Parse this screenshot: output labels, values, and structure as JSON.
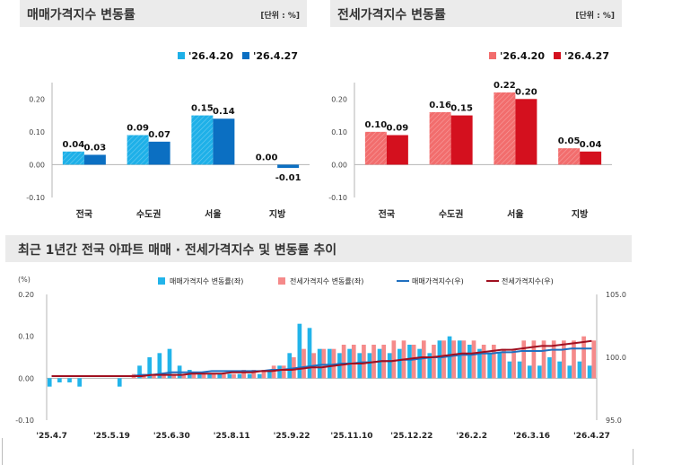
{
  "panels": {
    "sale": {
      "title": "매매가격지수 변동률",
      "unit": "[단위 : %]"
    },
    "jeonse": {
      "title": "전세가격지수 변동률",
      "unit": "[단위 : %]"
    },
    "trend": {
      "title": "최근 1년간 전국 아파트 매매 · 전세가격지수 및 변동률 추이"
    }
  },
  "colors": {
    "sale_prev": "#1eb0e8",
    "sale_curr": "#0b6fc2",
    "jeonse_prev": "#f26d6d",
    "jeonse_curr": "#d4101e",
    "trend_sale_bar": "#22b4ea",
    "trend_jeonse_bar": "#f58a8a",
    "trend_sale_line": "#2070c0",
    "trend_jeonse_line": "#a01020"
  },
  "chart_data": [
    {
      "type": "bar",
      "name": "sale",
      "categories": [
        "전국",
        "수도권",
        "서울",
        "지방"
      ],
      "series": [
        {
          "name": "'26.4.20",
          "values": [
            0.04,
            0.09,
            0.15,
            0.0
          ]
        },
        {
          "name": "'26.4.27",
          "values": [
            0.03,
            0.07,
            0.14,
            -0.01
          ]
        }
      ],
      "value_labels": [
        [
          "0.04",
          "0.09",
          "0.15",
          "0.00"
        ],
        [
          "0.03",
          "0.07",
          "0.14",
          "-0.01"
        ]
      ],
      "ylim": [
        -0.1,
        0.25
      ],
      "yticks": [
        "0.20",
        "0.10",
        "0.00",
        "-0.10"
      ],
      "legend": "top-right"
    },
    {
      "type": "bar",
      "name": "jeonse",
      "categories": [
        "전국",
        "수도권",
        "서울",
        "지방"
      ],
      "series": [
        {
          "name": "'26.4.20",
          "values": [
            0.1,
            0.16,
            0.22,
            0.05
          ]
        },
        {
          "name": "'26.4.27",
          "values": [
            0.09,
            0.15,
            0.2,
            0.04
          ]
        }
      ],
      "value_labels": [
        [
          "0.10",
          "0.16",
          "0.22",
          "0.05"
        ],
        [
          "0.09",
          "0.15",
          "0.20",
          "0.04"
        ]
      ],
      "ylim": [
        -0.1,
        0.25
      ],
      "yticks": [
        "0.20",
        "0.10",
        "0.00",
        "-0.10"
      ],
      "legend": "top-right"
    },
    {
      "type": "bar",
      "name": "trend",
      "ylabel": "(%)",
      "ylim": [
        -0.1,
        0.2
      ],
      "yticks": [
        "0.20",
        "0.10",
        "0.00",
        "-0.10"
      ],
      "y2lim": [
        95.0,
        105.0
      ],
      "y2ticks": [
        "105.0",
        "100.0",
        "95.0"
      ],
      "xticks": [
        "'25.4.7",
        "'25.5.19",
        "'25.6.30",
        "'25.8.11",
        "'25.9.22",
        "'25.11.10",
        "'25.12.22",
        "'26.2.2",
        "'26.3.16",
        "'26.4.27"
      ],
      "xtick_index": [
        0,
        6,
        12,
        18,
        24,
        30,
        36,
        42,
        48,
        54
      ],
      "legend": "top-center",
      "series": [
        {
          "name": "매매가격지수 변동률(좌)",
          "kind": "bar",
          "axis": "left",
          "values": [
            -0.02,
            -0.01,
            -0.01,
            -0.02,
            0.0,
            0.0,
            0.0,
            -0.02,
            0.0,
            0.03,
            0.05,
            0.06,
            0.07,
            0.03,
            0.02,
            0.01,
            0.01,
            0.01,
            0.01,
            0.01,
            0.01,
            0.01,
            0.02,
            0.03,
            0.06,
            0.13,
            0.12,
            0.07,
            0.07,
            0.06,
            0.07,
            0.06,
            0.06,
            0.07,
            0.06,
            0.07,
            0.08,
            0.07,
            0.06,
            0.09,
            0.1,
            0.09,
            0.08,
            0.07,
            0.06,
            0.06,
            0.04,
            0.04,
            0.03,
            0.03,
            0.05,
            0.04,
            0.03,
            0.04,
            0.03
          ]
        },
        {
          "name": "전세가격지수 변동률(좌)",
          "kind": "bar",
          "axis": "left",
          "values": [
            0.0,
            0.0,
            0.0,
            0.0,
            0.0,
            0.0,
            0.0,
            0.0,
            0.01,
            0.01,
            0.01,
            0.01,
            0.01,
            0.01,
            0.01,
            0.01,
            0.01,
            0.01,
            0.01,
            0.02,
            0.02,
            0.02,
            0.03,
            0.03,
            0.05,
            0.07,
            0.06,
            0.07,
            0.07,
            0.08,
            0.08,
            0.08,
            0.08,
            0.08,
            0.09,
            0.09,
            0.08,
            0.09,
            0.08,
            0.09,
            0.09,
            0.09,
            0.09,
            0.08,
            0.08,
            0.07,
            0.07,
            0.09,
            0.09,
            0.09,
            0.09,
            0.09,
            0.09,
            0.1,
            0.09
          ]
        },
        {
          "name": "매매가격지수(우)",
          "kind": "line",
          "axis": "right",
          "values": [
            98.5,
            98.5,
            98.5,
            98.5,
            98.5,
            98.5,
            98.5,
            98.5,
            98.5,
            98.6,
            98.6,
            98.7,
            98.8,
            98.8,
            98.8,
            98.8,
            98.9,
            98.9,
            98.9,
            98.9,
            98.9,
            98.9,
            99.0,
            99.0,
            99.1,
            99.2,
            99.3,
            99.4,
            99.4,
            99.5,
            99.5,
            99.6,
            99.6,
            99.7,
            99.7,
            99.8,
            99.8,
            99.9,
            100.0,
            100.0,
            100.1,
            100.2,
            100.2,
            100.3,
            100.3,
            100.4,
            100.4,
            100.5,
            100.5,
            100.5,
            100.6,
            100.6,
            100.7,
            100.7,
            100.7
          ]
        },
        {
          "name": "전세가격지수(우)",
          "kind": "line",
          "axis": "right",
          "values": [
            98.5,
            98.5,
            98.5,
            98.5,
            98.5,
            98.5,
            98.5,
            98.5,
            98.5,
            98.5,
            98.6,
            98.6,
            98.6,
            98.6,
            98.7,
            98.7,
            98.7,
            98.7,
            98.8,
            98.8,
            98.8,
            98.9,
            98.9,
            99.0,
            99.0,
            99.1,
            99.2,
            99.2,
            99.3,
            99.4,
            99.5,
            99.5,
            99.6,
            99.7,
            99.7,
            99.8,
            99.9,
            100.0,
            100.0,
            100.1,
            100.2,
            100.3,
            100.3,
            100.4,
            100.5,
            100.6,
            100.6,
            100.7,
            100.8,
            100.9,
            100.9,
            101.0,
            101.1,
            101.2,
            101.3
          ]
        }
      ]
    }
  ]
}
